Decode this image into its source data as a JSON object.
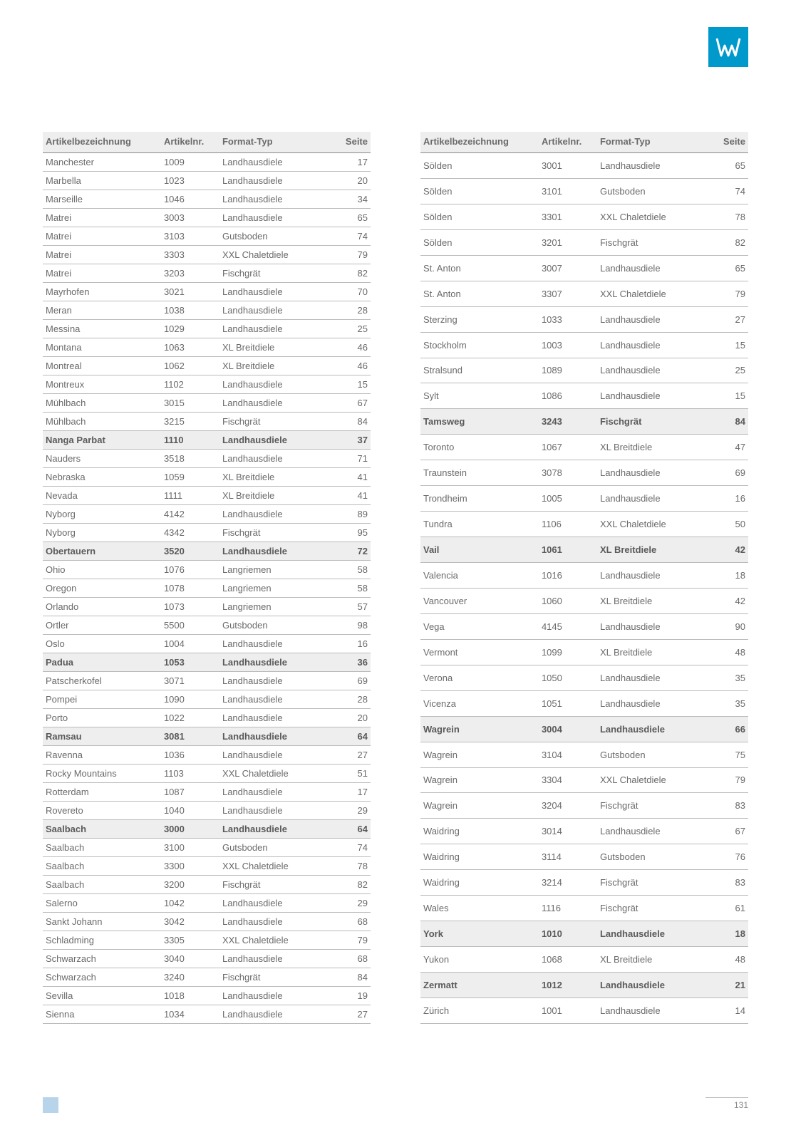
{
  "page_number": "131",
  "logo_bg": "#0099cc",
  "headers": {
    "col1": "Artikelbezeichnung",
    "col2": "Artikelnr.",
    "col3": "Format-Typ",
    "col4": "Seite"
  },
  "left_table": [
    {
      "name": "Manchester",
      "nr": "1009",
      "typ": "Landhausdiele",
      "seite": "17"
    },
    {
      "name": "Marbella",
      "nr": "1023",
      "typ": "Landhausdiele",
      "seite": "20"
    },
    {
      "name": "Marseille",
      "nr": "1046",
      "typ": "Landhausdiele",
      "seite": "34"
    },
    {
      "name": "Matrei",
      "nr": "3003",
      "typ": "Landhausdiele",
      "seite": "65"
    },
    {
      "name": "Matrei",
      "nr": "3103",
      "typ": "Gutsboden",
      "seite": "74"
    },
    {
      "name": "Matrei",
      "nr": "3303",
      "typ": "XXL Chaletdiele",
      "seite": "79"
    },
    {
      "name": "Matrei",
      "nr": "3203",
      "typ": "Fischgrät",
      "seite": "82"
    },
    {
      "name": "Mayrhofen",
      "nr": "3021",
      "typ": "Landhausdiele",
      "seite": "70"
    },
    {
      "name": "Meran",
      "nr": "1038",
      "typ": "Landhausdiele",
      "seite": "28"
    },
    {
      "name": "Messina",
      "nr": "1029",
      "typ": "Landhausdiele",
      "seite": "25"
    },
    {
      "name": "Montana",
      "nr": "1063",
      "typ": "XL Breitdiele",
      "seite": "46"
    },
    {
      "name": "Montreal",
      "nr": "1062",
      "typ": "XL Breitdiele",
      "seite": "46"
    },
    {
      "name": "Montreux",
      "nr": "1102",
      "typ": "Landhausdiele",
      "seite": "15"
    },
    {
      "name": "Mühlbach",
      "nr": "3015",
      "typ": "Landhausdiele",
      "seite": "67"
    },
    {
      "name": "Mühlbach",
      "nr": "3215",
      "typ": "Fischgrät",
      "seite": "84"
    },
    {
      "name": "Nanga Parbat",
      "nr": "1110",
      "typ": "Landhausdiele",
      "seite": "37",
      "hl": true
    },
    {
      "name": "Nauders",
      "nr": "3518",
      "typ": "Landhausdiele",
      "seite": "71"
    },
    {
      "name": "Nebraska",
      "nr": "1059",
      "typ": "XL Breitdiele",
      "seite": "41"
    },
    {
      "name": "Nevada",
      "nr": "1111",
      "typ": "XL Breitdiele",
      "seite": "41"
    },
    {
      "name": "Nyborg",
      "nr": "4142",
      "typ": "Landhausdiele",
      "seite": "89"
    },
    {
      "name": "Nyborg",
      "nr": "4342",
      "typ": "Fischgrät",
      "seite": "95"
    },
    {
      "name": "Obertauern",
      "nr": "3520",
      "typ": "Landhausdiele",
      "seite": "72",
      "hl": true
    },
    {
      "name": "Ohio",
      "nr": "1076",
      "typ": "Langriemen",
      "seite": "58"
    },
    {
      "name": "Oregon",
      "nr": "1078",
      "typ": "Langriemen",
      "seite": "58"
    },
    {
      "name": "Orlando",
      "nr": "1073",
      "typ": "Langriemen",
      "seite": "57"
    },
    {
      "name": "Ortler",
      "nr": "5500",
      "typ": "Gutsboden",
      "seite": "98"
    },
    {
      "name": "Oslo",
      "nr": "1004",
      "typ": "Landhausdiele",
      "seite": "16"
    },
    {
      "name": "Padua",
      "nr": "1053",
      "typ": "Landhausdiele",
      "seite": "36",
      "hl": true
    },
    {
      "name": "Patscherkofel",
      "nr": "3071",
      "typ": "Landhausdiele",
      "seite": "69"
    },
    {
      "name": "Pompei",
      "nr": "1090",
      "typ": "Landhausdiele",
      "seite": "28"
    },
    {
      "name": "Porto",
      "nr": "1022",
      "typ": "Landhausdiele",
      "seite": "20"
    },
    {
      "name": "Ramsau",
      "nr": "3081",
      "typ": "Landhausdiele",
      "seite": "64",
      "hl": true
    },
    {
      "name": "Ravenna",
      "nr": "1036",
      "typ": "Landhausdiele",
      "seite": "27"
    },
    {
      "name": "Rocky Mountains",
      "nr": "1103",
      "typ": "XXL Chaletdiele",
      "seite": "51"
    },
    {
      "name": "Rotterdam",
      "nr": "1087",
      "typ": "Landhausdiele",
      "seite": "17"
    },
    {
      "name": "Rovereto",
      "nr": "1040",
      "typ": "Landhausdiele",
      "seite": "29"
    },
    {
      "name": "Saalbach",
      "nr": "3000",
      "typ": "Landhausdiele",
      "seite": "64",
      "hl": true
    },
    {
      "name": "Saalbach",
      "nr": "3100",
      "typ": "Gutsboden",
      "seite": "74"
    },
    {
      "name": "Saalbach",
      "nr": "3300",
      "typ": "XXL Chaletdiele",
      "seite": "78"
    },
    {
      "name": "Saalbach",
      "nr": "3200",
      "typ": "Fischgrät",
      "seite": "82"
    },
    {
      "name": "Salerno",
      "nr": "1042",
      "typ": "Landhausdiele",
      "seite": "29"
    },
    {
      "name": "Sankt Johann",
      "nr": "3042",
      "typ": "Landhausdiele",
      "seite": "68"
    },
    {
      "name": "Schladming",
      "nr": "3305",
      "typ": "XXL Chaletdiele",
      "seite": "79"
    },
    {
      "name": "Schwarzach",
      "nr": "3040",
      "typ": "Landhausdiele",
      "seite": "68"
    },
    {
      "name": "Schwarzach",
      "nr": "3240",
      "typ": "Fischgrät",
      "seite": "84"
    },
    {
      "name": "Sevilla",
      "nr": "1018",
      "typ": "Landhausdiele",
      "seite": "19"
    },
    {
      "name": "Sienna",
      "nr": "1034",
      "typ": "Landhausdiele",
      "seite": "27"
    }
  ],
  "right_table": [
    {
      "name": "Sölden",
      "nr": "3001",
      "typ": "Landhausdiele",
      "seite": "65"
    },
    {
      "name": "Sölden",
      "nr": "3101",
      "typ": "Gutsboden",
      "seite": "74"
    },
    {
      "name": "Sölden",
      "nr": "3301",
      "typ": "XXL Chaletdiele",
      "seite": "78"
    },
    {
      "name": "Sölden",
      "nr": "3201",
      "typ": "Fischgrät",
      "seite": "82"
    },
    {
      "name": "St. Anton",
      "nr": "3007",
      "typ": "Landhausdiele",
      "seite": "65"
    },
    {
      "name": "St. Anton",
      "nr": "3307",
      "typ": "XXL Chaletdiele",
      "seite": "79"
    },
    {
      "name": "Sterzing",
      "nr": "1033",
      "typ": "Landhausdiele",
      "seite": "27"
    },
    {
      "name": "Stockholm",
      "nr": "1003",
      "typ": "Landhausdiele",
      "seite": "15"
    },
    {
      "name": "Stralsund",
      "nr": "1089",
      "typ": "Landhausdiele",
      "seite": "25"
    },
    {
      "name": "Sylt",
      "nr": "1086",
      "typ": "Landhausdiele",
      "seite": "15"
    },
    {
      "name": "Tamsweg",
      "nr": "3243",
      "typ": "Fischgrät",
      "seite": "84",
      "hl": true
    },
    {
      "name": "Toronto",
      "nr": "1067",
      "typ": "XL Breitdiele",
      "seite": "47"
    },
    {
      "name": "Traunstein",
      "nr": "3078",
      "typ": "Landhausdiele",
      "seite": "69"
    },
    {
      "name": "Trondheim",
      "nr": "1005",
      "typ": "Landhausdiele",
      "seite": "16"
    },
    {
      "name": "Tundra",
      "nr": "1106",
      "typ": "XXL Chaletdiele",
      "seite": "50"
    },
    {
      "name": "Vail",
      "nr": "1061",
      "typ": "XL Breitdiele",
      "seite": "42",
      "hl": true
    },
    {
      "name": "Valencia",
      "nr": "1016",
      "typ": "Landhausdiele",
      "seite": "18"
    },
    {
      "name": "Vancouver",
      "nr": "1060",
      "typ": "XL Breitdiele",
      "seite": "42"
    },
    {
      "name": "Vega",
      "nr": "4145",
      "typ": "Landhausdiele",
      "seite": "90"
    },
    {
      "name": "Vermont",
      "nr": "1099",
      "typ": "XL Breitdiele",
      "seite": "48"
    },
    {
      "name": "Verona",
      "nr": "1050",
      "typ": "Landhausdiele",
      "seite": "35"
    },
    {
      "name": "Vicenza",
      "nr": "1051",
      "typ": "Landhausdiele",
      "seite": "35"
    },
    {
      "name": "Wagrein",
      "nr": "3004",
      "typ": "Landhausdiele",
      "seite": "66",
      "hl": true
    },
    {
      "name": "Wagrein",
      "nr": "3104",
      "typ": "Gutsboden",
      "seite": "75"
    },
    {
      "name": "Wagrein",
      "nr": "3304",
      "typ": "XXL Chaletdiele",
      "seite": "79"
    },
    {
      "name": "Wagrein",
      "nr": "3204",
      "typ": "Fischgrät",
      "seite": "83"
    },
    {
      "name": "Waidring",
      "nr": "3014",
      "typ": "Landhausdiele",
      "seite": "67"
    },
    {
      "name": "Waidring",
      "nr": "3114",
      "typ": "Gutsboden",
      "seite": "76"
    },
    {
      "name": "Waidring",
      "nr": "3214",
      "typ": "Fischgrät",
      "seite": "83"
    },
    {
      "name": "Wales",
      "nr": "1116",
      "typ": "Fischgrät",
      "seite": "61"
    },
    {
      "name": "York",
      "nr": "1010",
      "typ": "Landhausdiele",
      "seite": "18",
      "hl": true
    },
    {
      "name": "Yukon",
      "nr": "1068",
      "typ": "XL Breitdiele",
      "seite": "48"
    },
    {
      "name": "Zermatt",
      "nr": "1012",
      "typ": "Landhausdiele",
      "seite": "21",
      "hl": true
    },
    {
      "name": "Zürich",
      "nr": "1001",
      "typ": "Landhausdiele",
      "seite": "14"
    }
  ]
}
